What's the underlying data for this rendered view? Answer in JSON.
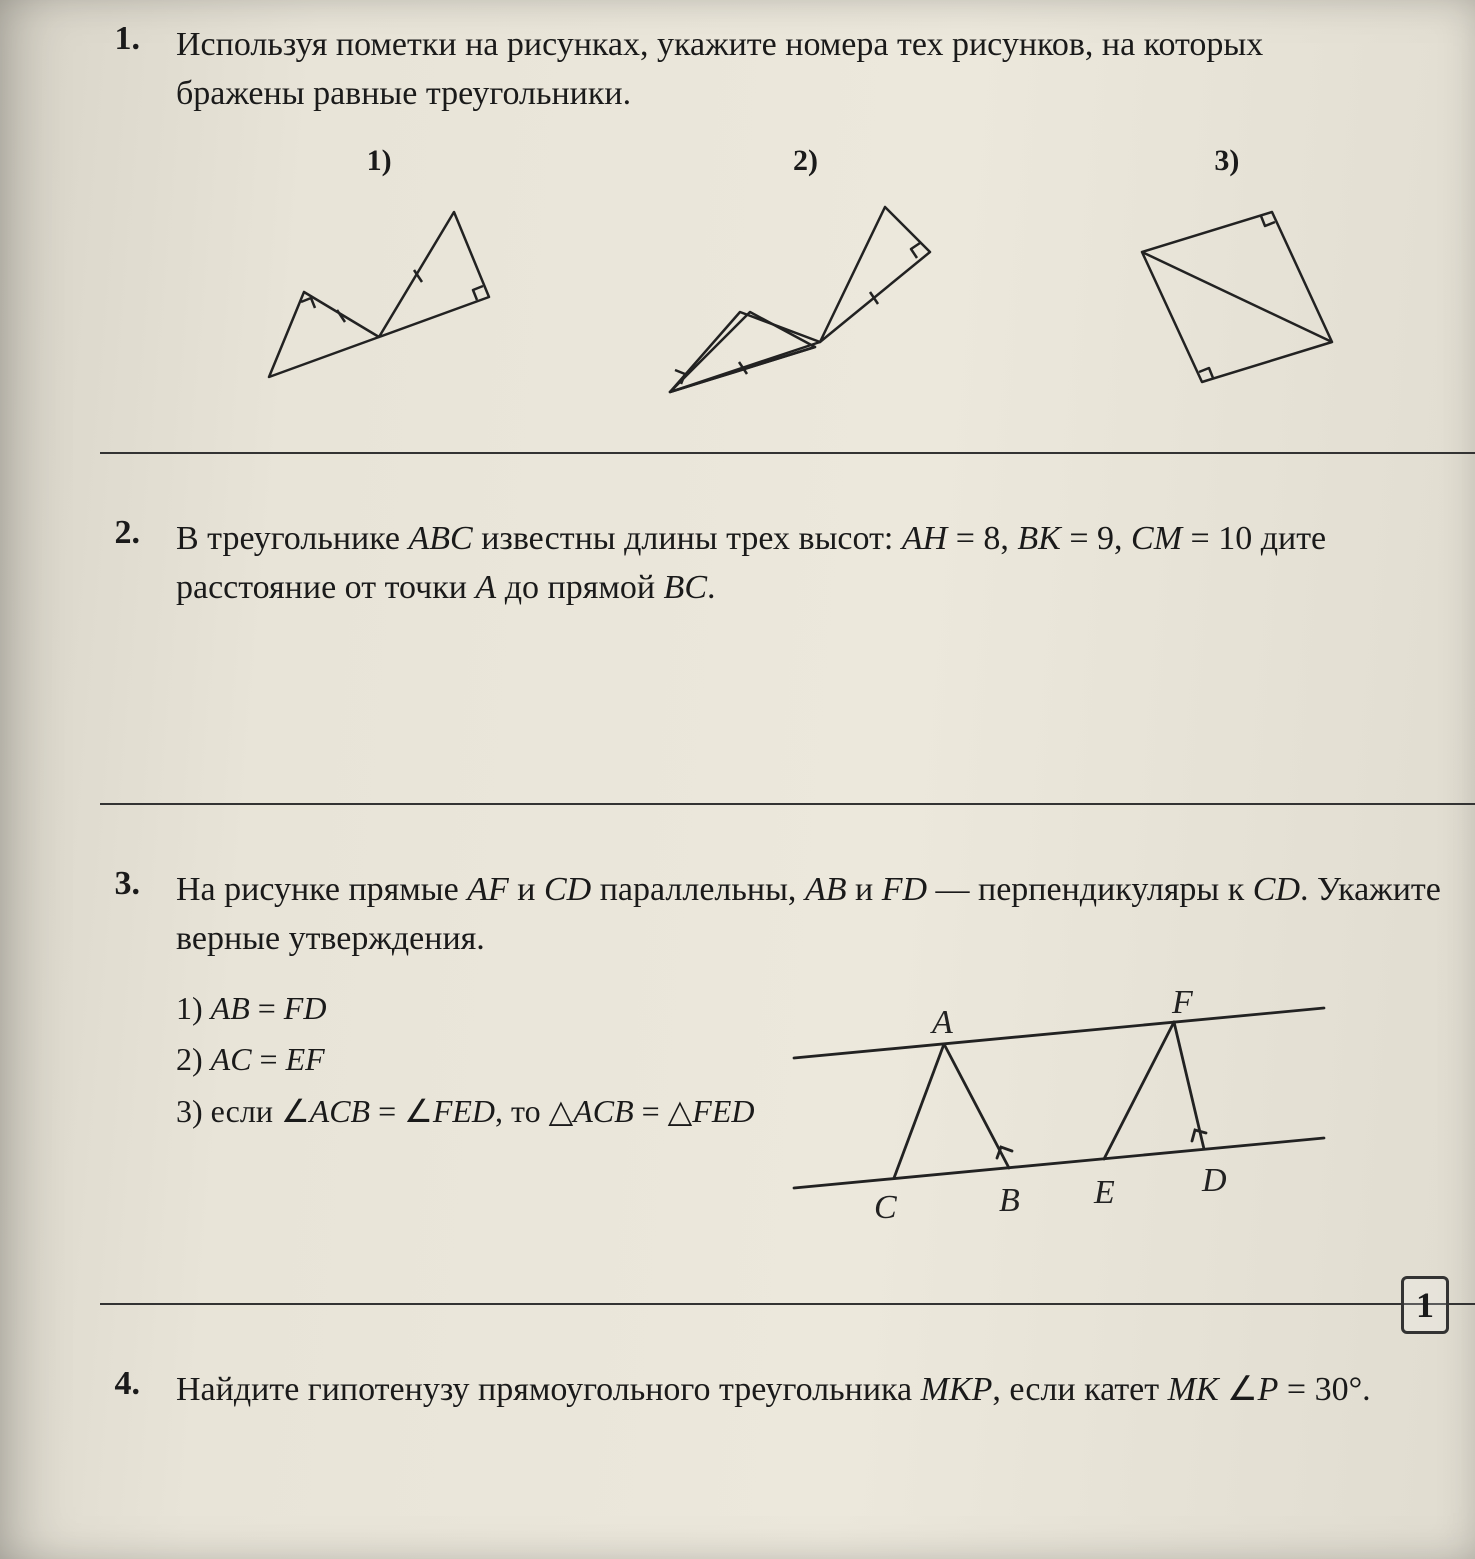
{
  "problems": {
    "p1": {
      "number": "1.",
      "text_line1": "Используя пометки на рисунках, укажите номера тех рисунков, на которых",
      "text_line2": "бражены равные треугольники.",
      "fig_labels": [
        "1)",
        "2)",
        "3)"
      ],
      "figures": {
        "stroke": "#222222",
        "stroke_width": 2.5,
        "tick_len": 7
      }
    },
    "p2": {
      "number": "2.",
      "text": "В треугольнике <i>ABC</i> известны длины трех высот: <i>AH</i> = 8, <i>BK</i> = 9, <i>CM</i> = 10 дите расстояние от точки <i>A</i> до прямой <i>BC</i>."
    },
    "p3": {
      "number": "3.",
      "text": "На рисунке прямые <i>AF</i> и <i>CD</i> параллельны, <i>AB</i> и <i>FD</i> — перпендикуляры к <i>CD</i>. Укажите верные утверждения.",
      "options": [
        "1) <i>AB</i> = <i>FD</i>",
        "2) <i>AC</i> = <i>EF</i>",
        "3) если ∠<i>ACB</i> = ∠<i>FED</i>, то △<i>ACB</i> = △<i>FED</i>"
      ],
      "diagram": {
        "stroke": "#222222",
        "stroke_width": 2.5,
        "labels": {
          "A": "A",
          "F": "F",
          "C": "C",
          "B": "B",
          "E": "E",
          "D": "D"
        },
        "font_size": 30
      }
    },
    "p4": {
      "number": "4.",
      "text": "Найдите гипотенузу прямоугольного треугольника <i>MKP</i>, если катет <i>MK</i> ∠<i>P</i> = 30°."
    }
  },
  "page_number": "1",
  "colors": {
    "text": "#1a1a1a",
    "rule": "#333333"
  }
}
